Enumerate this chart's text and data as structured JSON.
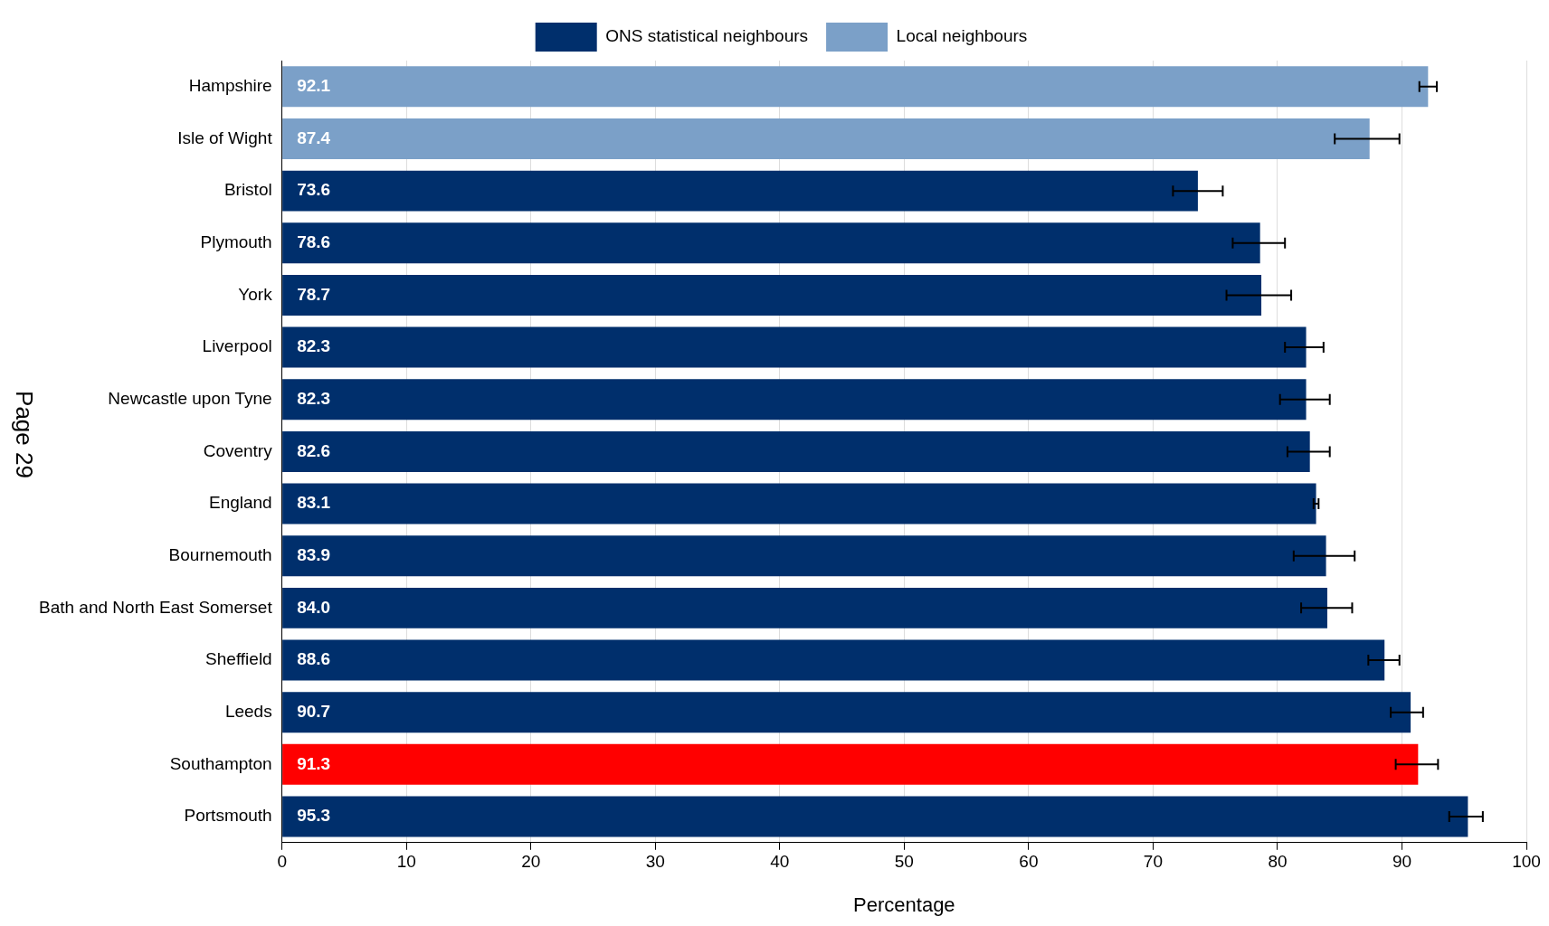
{
  "chart_data": {
    "type": "bar",
    "orientation": "horizontal",
    "xlabel": "Percentage",
    "annotations": [
      "Page 29"
    ],
    "categories": [
      "Hampshire",
      "Isle of Wight",
      "Bristol",
      "Plymouth",
      "York",
      "Liverpool",
      "Newcastle upon Tyne",
      "Coventry",
      "England",
      "Bournemouth",
      "Bath and North East Somerset",
      "Sheffield",
      "Leeds",
      "Southampton",
      "Portsmouth"
    ],
    "series": [
      {
        "name": "ONS statistical neighbours",
        "color": "#002f6c",
        "colors": [
          null,
          null,
          "#002f6c",
          "#002f6c",
          "#002f6c",
          "#002f6c",
          "#002f6c",
          "#002f6c",
          "#002f6c",
          "#002f6c",
          "#002f6c",
          "#002f6c",
          "#002f6c",
          "#ff0000",
          "#002f6c"
        ],
        "values": [
          null,
          null,
          73.6,
          78.6,
          78.7,
          82.3,
          82.3,
          82.6,
          83.1,
          83.9,
          84.0,
          88.6,
          90.7,
          91.3,
          95.3
        ],
        "value_labels": [
          null,
          null,
          "73.6",
          "78.6",
          "78.7",
          "82.3",
          "82.3",
          "82.6",
          "83.1",
          "83.9",
          "84.0",
          "88.6",
          "90.7",
          "91.3",
          "95.3"
        ],
        "errors": [
          null,
          null,
          [
            71.6,
            75.6
          ],
          [
            76.4,
            80.6
          ],
          [
            75.9,
            81.1
          ],
          [
            80.6,
            83.7
          ],
          [
            80.2,
            84.2
          ],
          [
            80.8,
            84.2
          ],
          [
            82.9,
            83.3
          ],
          [
            81.3,
            86.2
          ],
          [
            81.9,
            86.0
          ],
          [
            87.3,
            89.8
          ],
          [
            89.1,
            91.7
          ],
          [
            89.5,
            92.9
          ],
          [
            93.8,
            96.5
          ]
        ]
      },
      {
        "name": "Local neighbours",
        "color": "#7ba0c8",
        "values": [
          92.1,
          87.4,
          null,
          null,
          null,
          null,
          null,
          null,
          null,
          null,
          null,
          null,
          null,
          null,
          null
        ],
        "value_labels": [
          "92.1",
          "87.4",
          null,
          null,
          null,
          null,
          null,
          null,
          null,
          null,
          null,
          null,
          null,
          null,
          null
        ],
        "errors": [
          [
            91.4,
            92.8
          ],
          [
            84.6,
            89.8
          ],
          null,
          null,
          null,
          null,
          null,
          null,
          null,
          null,
          null,
          null,
          null,
          null,
          null
        ]
      }
    ],
    "xlim": [
      0,
      100
    ],
    "xticks": [
      0,
      10,
      20,
      30,
      40,
      50,
      60,
      70,
      80,
      90,
      100
    ],
    "grid": "x",
    "legend": "top"
  }
}
